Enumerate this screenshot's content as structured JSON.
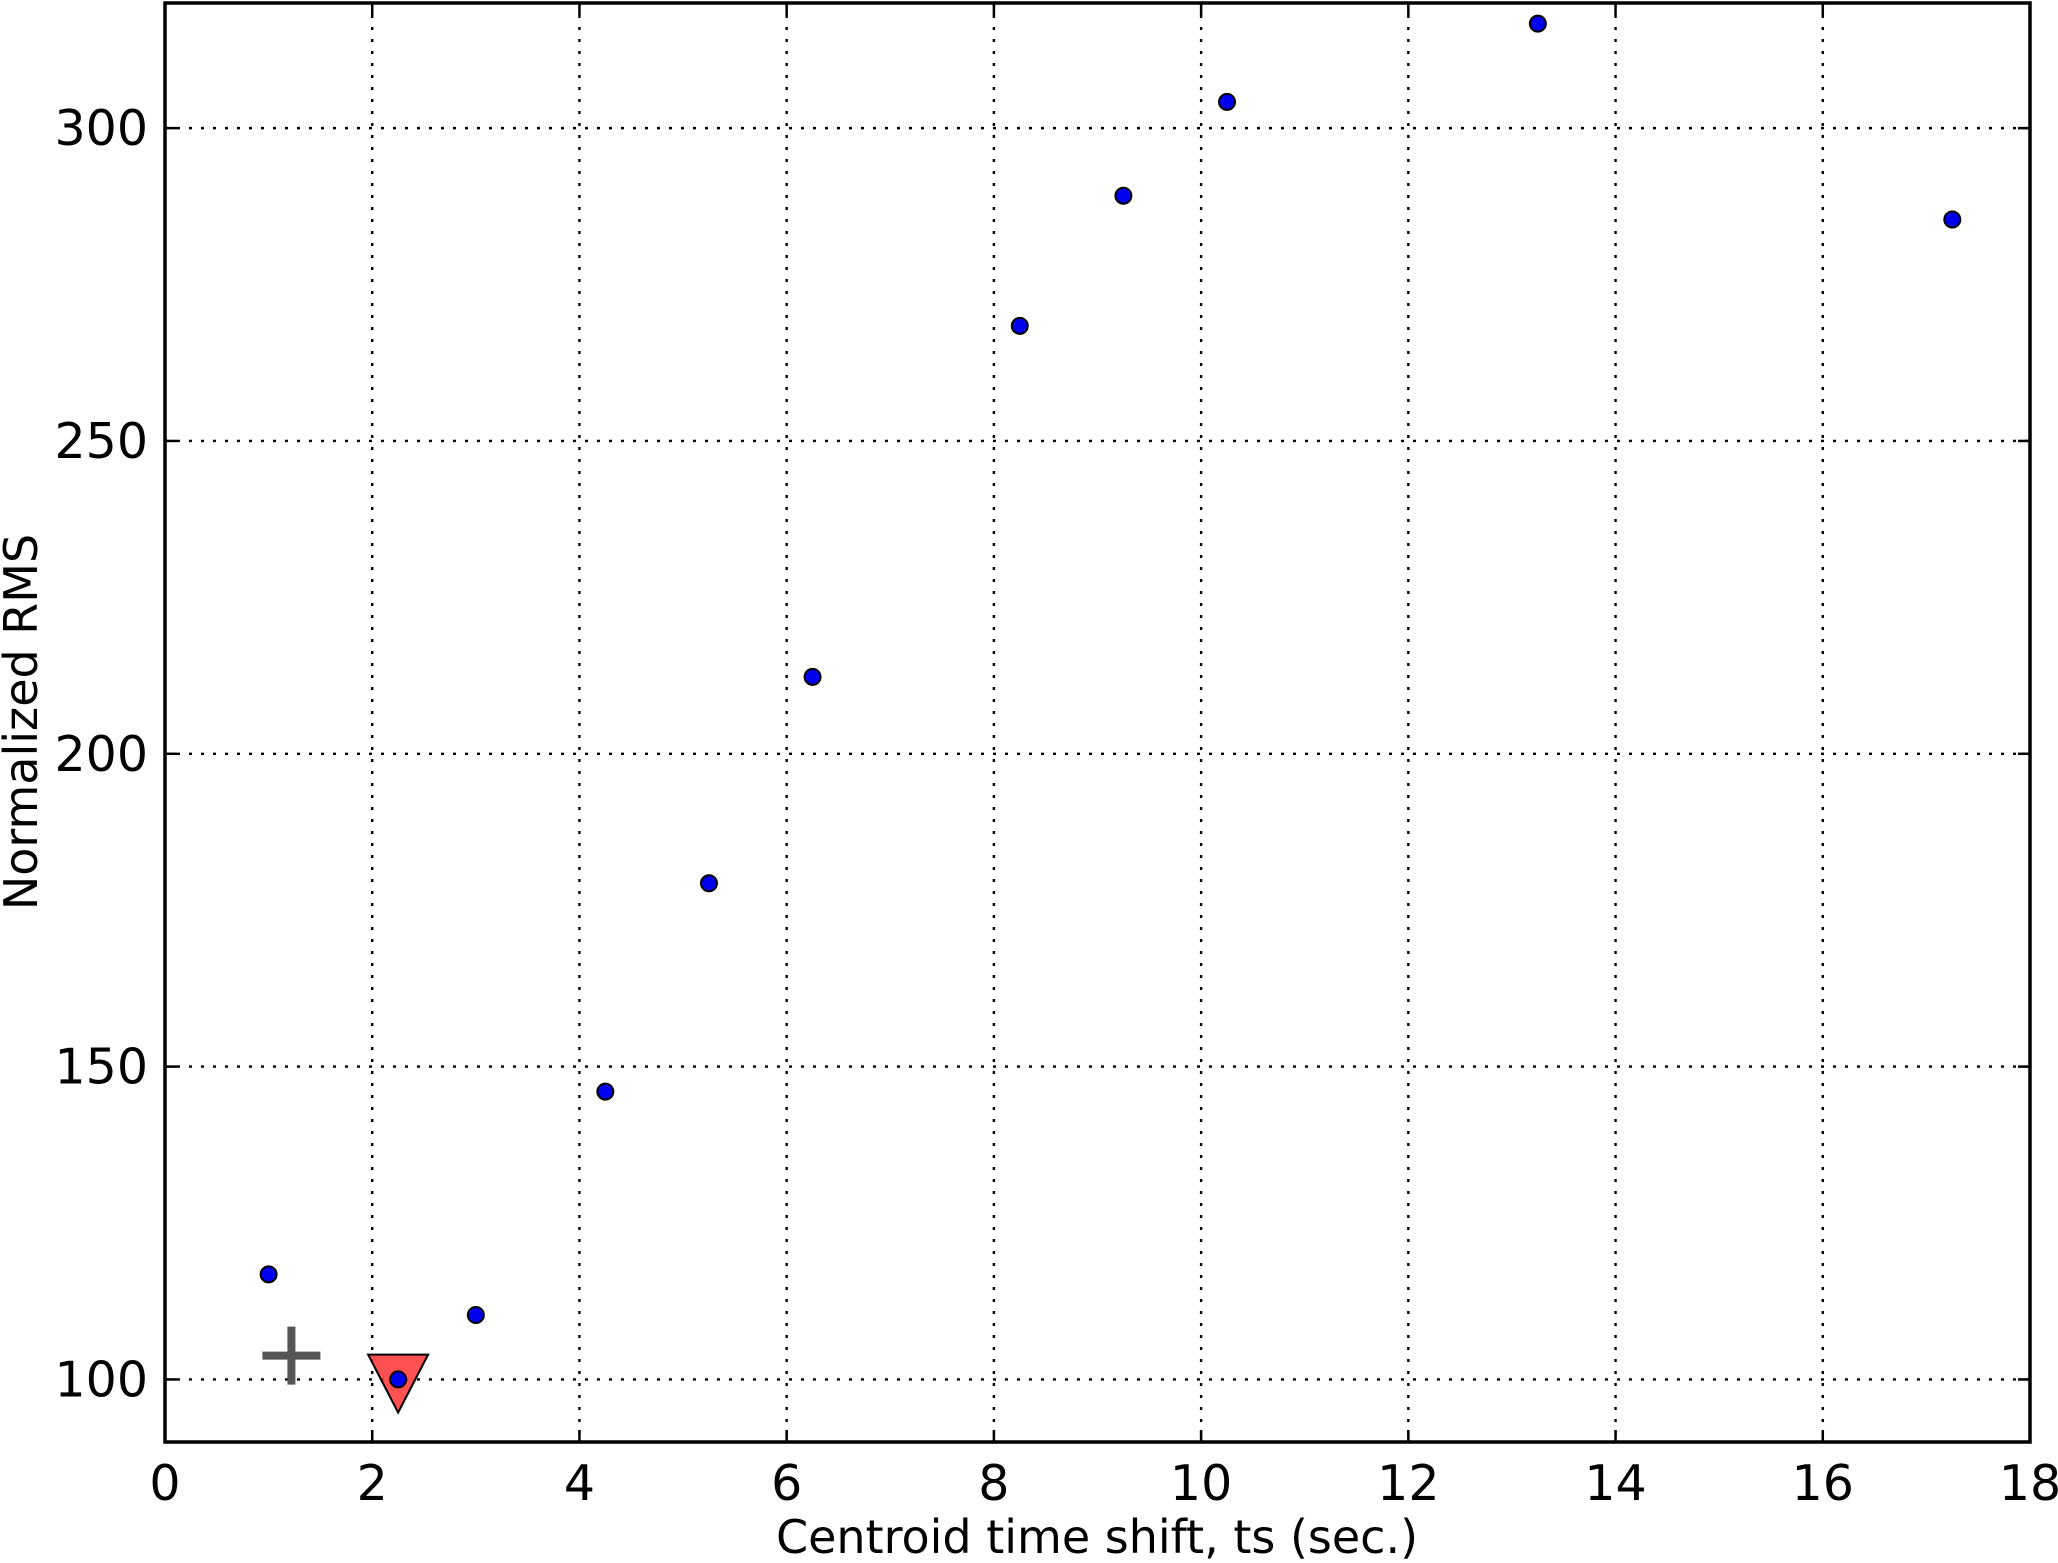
{
  "chart_data": {
    "type": "scatter",
    "title": "",
    "xlabel": "Centroid time shift, ts (sec.)",
    "ylabel": "Normalized RMS",
    "xlim": [
      0,
      18
    ],
    "ylim": [
      90,
      320
    ],
    "x_ticks": [
      0,
      2,
      4,
      6,
      8,
      10,
      12,
      14,
      16,
      18
    ],
    "x_tick_labels": [
      "0",
      "2",
      "4",
      "6",
      "8",
      "10",
      "12",
      "14",
      "16",
      "18"
    ],
    "y_ticks": [
      100,
      150,
      200,
      250,
      300
    ],
    "y_tick_labels": [
      "100",
      "150",
      "200",
      "250",
      "300"
    ],
    "grid": true,
    "series": [
      {
        "marker": "circle",
        "color": "#0000ee",
        "x": [
          1.0,
          2.25,
          3.0,
          4.25,
          5.25,
          6.25,
          8.25,
          9.25,
          10.25,
          13.25,
          17.25
        ],
        "y": [
          116.8,
          100.0,
          110.3,
          146.0,
          179.3,
          212.3,
          268.4,
          289.2,
          304.2,
          316.7,
          285.4
        ]
      },
      {
        "marker": "triangle-down",
        "color": "#ff3333",
        "x": [
          2.25
        ],
        "y": [
          99.5
        ]
      },
      {
        "marker": "plus",
        "color": "#555555",
        "x": [
          1.22
        ],
        "y": [
          103.8
        ]
      }
    ]
  }
}
